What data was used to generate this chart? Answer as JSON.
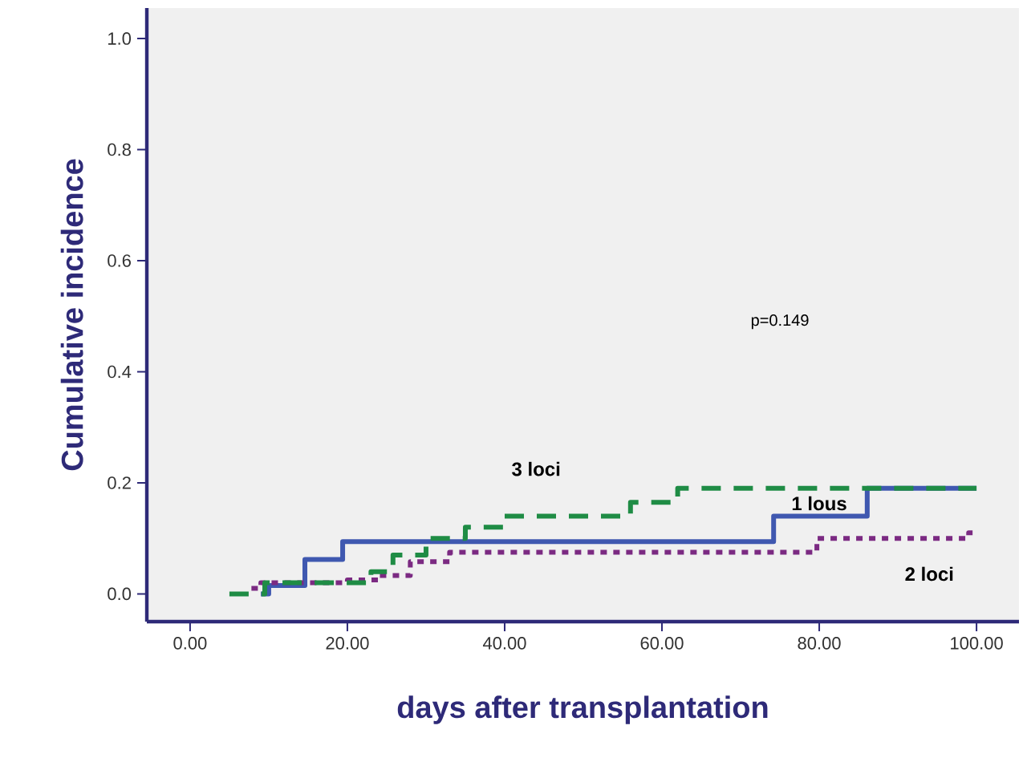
{
  "chart_data": {
    "type": "step",
    "xlabel": "days after transplantation",
    "ylabel": "Cumulative incidence",
    "xlim": [
      -5.5,
      105.4
    ],
    "ylim": [
      -0.05,
      1.055
    ],
    "xticks": [
      {
        "value": 0,
        "label": "0.00"
      },
      {
        "value": 20,
        "label": "20.00"
      },
      {
        "value": 40,
        "label": "40.00"
      },
      {
        "value": 60,
        "label": "60.00"
      },
      {
        "value": 80,
        "label": "80.00"
      },
      {
        "value": 100,
        "label": "100.00"
      }
    ],
    "yticks": [
      {
        "value": 0,
        "label": "0.0"
      },
      {
        "value": 0.2,
        "label": "0.2"
      },
      {
        "value": 0.4,
        "label": "0.4"
      },
      {
        "value": 0.6,
        "label": "0.6"
      },
      {
        "value": 0.8,
        "label": "0.8"
      },
      {
        "value": 1,
        "label": "1.0"
      }
    ],
    "grid": false,
    "annotations": [
      "p=0.149"
    ],
    "series": [
      {
        "name": "1 lous",
        "color": "#3f58b0",
        "line_style": "solid",
        "x": [
          9,
          10,
          14.6,
          19.4,
          74.2,
          86.1,
          100
        ],
        "values": [
          0,
          0.015,
          0.062,
          0.094,
          0.14,
          0.19,
          0.19
        ]
      },
      {
        "name": "2 loci",
        "color": "#7b2a82",
        "line_style": "dotted",
        "x": [
          7.8,
          9,
          20,
          24,
          28,
          33,
          79.7,
          99,
          100
        ],
        "values": [
          0.01,
          0.02,
          0.025,
          0.033,
          0.058,
          0.075,
          0.1,
          0.11,
          0.11
        ]
      },
      {
        "name": "3 loci",
        "color": "#1f8c45",
        "line_style": "dashed",
        "x": [
          5,
          9.5,
          18,
          23,
          25.8,
          30,
          35,
          40,
          56,
          62,
          100
        ],
        "values": [
          0,
          0.02,
          0.02,
          0.04,
          0.07,
          0.1,
          0.12,
          0.14,
          0.165,
          0.19,
          0.19
        ]
      }
    ]
  }
}
